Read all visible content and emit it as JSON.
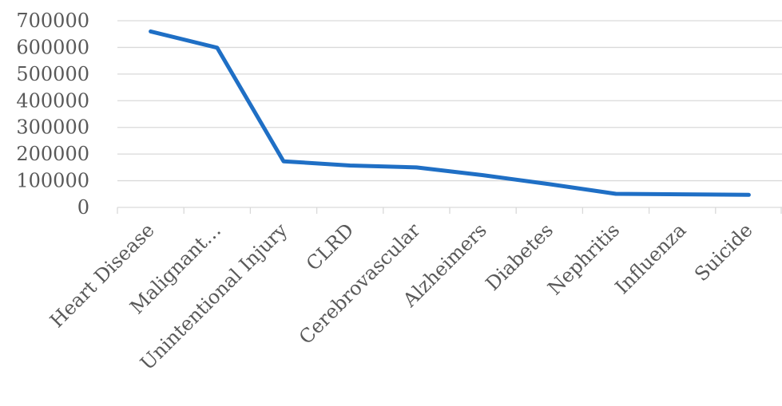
{
  "chart_data": {
    "type": "line",
    "title": "",
    "xlabel": "",
    "ylabel": "",
    "categories": [
      "Heart Disease",
      "Malignant…",
      "Unintentional Injury",
      "CLRD",
      "Cerebrovascular",
      "Alzheimers",
      "Diabetes",
      "Nephritis",
      "Influenza",
      "Suicide"
    ],
    "series": [
      {
        "color": "#1f6fc5",
        "values": [
          660000,
          599000,
          173000,
          157000,
          150000,
          121000,
          87000,
          51000,
          49000,
          47000
        ]
      }
    ],
    "ylim": [
      0,
      700000
    ],
    "yticks": [
      "0",
      "100000",
      "200000",
      "300000",
      "400000",
      "500000",
      "600000",
      "700000"
    ],
    "grid": true,
    "legend": "none"
  }
}
